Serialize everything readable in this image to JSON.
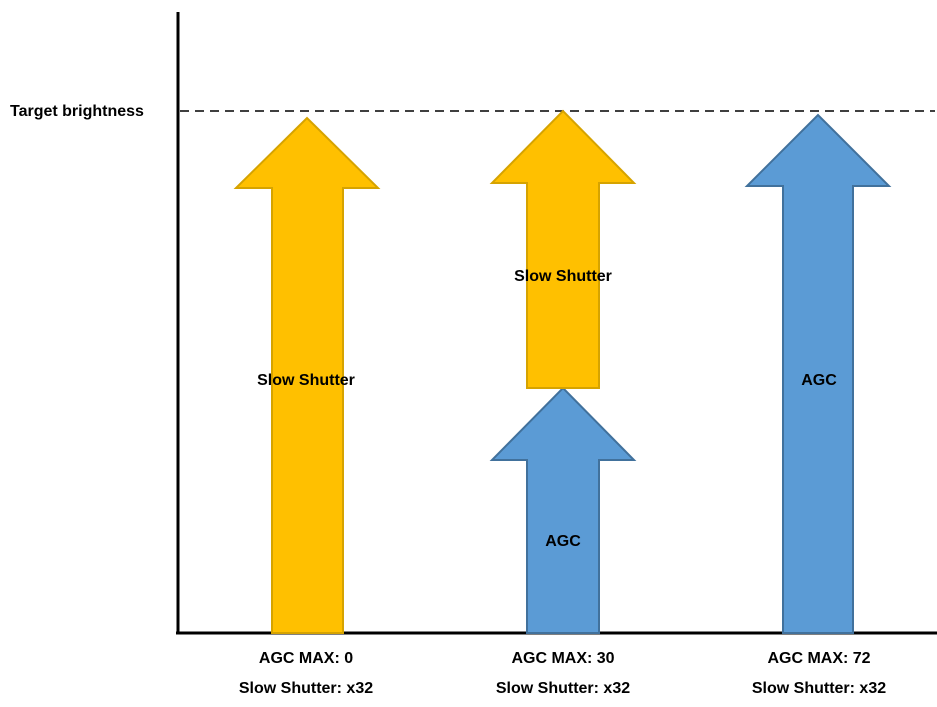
{
  "target_label": "Target brightness",
  "columns": [
    {
      "agc_max": "AGC MAX: 0",
      "slow_shutter": "Slow Shutter: x32",
      "segments": [
        {
          "label": "Slow Shutter",
          "kind": "slow_shutter"
        }
      ]
    },
    {
      "agc_max": "AGC MAX: 30",
      "slow_shutter": "Slow Shutter: x32",
      "segments": [
        {
          "label": "AGC",
          "kind": "agc"
        },
        {
          "label": "Slow Shutter",
          "kind": "slow_shutter"
        }
      ]
    },
    {
      "agc_max": "AGC MAX: 72",
      "slow_shutter": "Slow Shutter: x32",
      "segments": [
        {
          "label": "AGC",
          "kind": "agc"
        }
      ]
    }
  ],
  "colors": {
    "slow_shutter_fill": "#FFC000",
    "slow_shutter_stroke": "#D6A300",
    "agc_fill": "#5B9BD5",
    "agc_stroke": "#41719C",
    "axis": "#000000"
  }
}
